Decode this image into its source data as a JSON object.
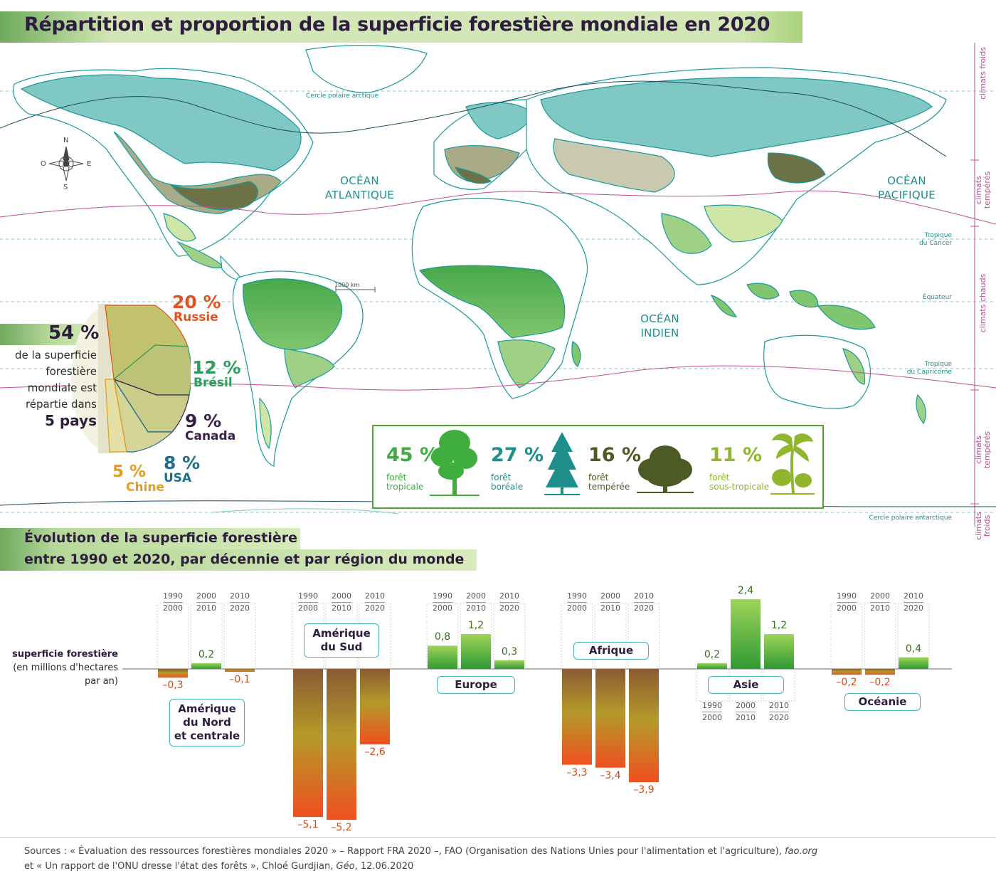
{
  "title": "Répartition et proportion de la superficie forestière mondiale en 2020",
  "oceans": {
    "atlantic": [
      "OCÉAN",
      "ATLANTIQUE"
    ],
    "pacific": [
      "OCÉAN",
      "PACIFIQUE"
    ],
    "indian": [
      "OCÉAN",
      "INDIEN"
    ]
  },
  "latitudes": {
    "arctic": "Cercle polaire arctique",
    "cancer": [
      "Tropique",
      "du Cancer"
    ],
    "equator": "Équateur",
    "capricorn": [
      "Tropique",
      "du Capricorne"
    ],
    "antarctic": "Cercle polaire antarctique"
  },
  "climates": {
    "cold_north": "climats froids",
    "temperate_north": [
      "climats",
      "tempérés"
    ],
    "warm": "climats chauds",
    "temperate_south": [
      "climats",
      "tempérés"
    ],
    "cold_south": [
      "climats",
      "froids"
    ]
  },
  "scale": "1000 km",
  "compass": {
    "n": "N",
    "s": "S",
    "e": "E",
    "o": "O"
  },
  "share": {
    "pct": "54 %",
    "lines": [
      "de la superficie",
      "forestière",
      "mondiale est",
      "répartie dans"
    ],
    "strong": "5 pays",
    "countries": [
      {
        "pct": "20 %",
        "name": "Russie",
        "value": 20,
        "color": "#e0521e"
      },
      {
        "pct": "12 %",
        "name": "Brésil",
        "value": 12,
        "color": "#2aa05c"
      },
      {
        "pct": "9 %",
        "name": "Canada",
        "value": 9,
        "color": "#3b1f48"
      },
      {
        "pct": "8 %",
        "name": "USA",
        "value": 8,
        "color": "#1d6f8a"
      },
      {
        "pct": "5 %",
        "name": "Chine",
        "value": 5,
        "color": "#e79b1c"
      }
    ]
  },
  "legend": [
    {
      "pct": "45 %",
      "label": [
        "forêt",
        "tropicale"
      ],
      "color": "#3fae3f",
      "icon": "tropical-tree-icon"
    },
    {
      "pct": "27 %",
      "label": [
        "forêt",
        "boréale"
      ],
      "color": "#1f8f8c",
      "icon": "boreal-tree-icon"
    },
    {
      "pct": "16 %",
      "label": [
        "forêt",
        "tempérée"
      ],
      "color": "#4e5a26",
      "icon": "temperate-tree-icon"
    },
    {
      "pct": "11 %",
      "label": [
        "forêt",
        "sous-tropicale"
      ],
      "color": "#8fb62c",
      "icon": "subtropical-tree-icon"
    }
  ],
  "section2": {
    "title_line1": "Évolution de la superficie forestière",
    "title_line2": "entre 1990 et 2020, par décennie et par région du monde",
    "axis_label": [
      "superficie forestière",
      "(en millions d'hectares",
      "par an)"
    ]
  },
  "chart_data": {
    "type": "bar",
    "categories": [
      "1990-2000",
      "2000-2010",
      "2010-2020"
    ],
    "decades": [
      [
        "1990",
        "2000"
      ],
      [
        "2000",
        "2010"
      ],
      [
        "2010",
        "2020"
      ]
    ],
    "series": [
      {
        "name": "Amérique du Nord et centrale",
        "values": [
          -0.3,
          0.2,
          -0.1
        ],
        "labels": [
          "–0,3",
          "0,2",
          "–0,1"
        ]
      },
      {
        "name": "Amérique du Sud",
        "values": [
          -5.1,
          -5.2,
          -2.6
        ],
        "labels": [
          "–5,1",
          "–5,2",
          "–2,6"
        ]
      },
      {
        "name": "Europe",
        "values": [
          0.8,
          1.2,
          0.3
        ],
        "labels": [
          "0,8",
          "1,2",
          "0,3"
        ]
      },
      {
        "name": "Afrique",
        "values": [
          -3.3,
          -3.4,
          -3.9
        ],
        "labels": [
          "–3,3",
          "–3,4",
          "–3,9"
        ]
      },
      {
        "name": "Asie",
        "values": [
          0.2,
          2.4,
          1.2
        ],
        "labels": [
          "0,2",
          "2,4",
          "1,2"
        ]
      },
      {
        "name": "Océanie",
        "values": [
          -0.2,
          -0.2,
          0.4
        ],
        "labels": [
          "–0,2",
          "–0,2",
          "0,4"
        ]
      }
    ],
    "region_labels": [
      [
        "Amérique",
        "du Nord",
        "et centrale"
      ],
      [
        "Amérique",
        "du Sud"
      ],
      [
        "Europe"
      ],
      [
        "Afrique"
      ],
      [
        "Asie"
      ],
      [
        "Océanie"
      ]
    ]
  },
  "sources": {
    "line1_a": "Sources : « Évaluation des ressources forestières mondiales 2020 »  – Rapport FRA 2020 –, FAO (Organisation des Nations Unies pour l'alimentation et l'agriculture), ",
    "line1_b": "fao.org",
    "line2_a": "et « Un rapport de l'ONU dresse l'état des forêts », Chloé Gurdjian, ",
    "line2_b": "Géo",
    "line2_c": ", 12.06.2020"
  }
}
